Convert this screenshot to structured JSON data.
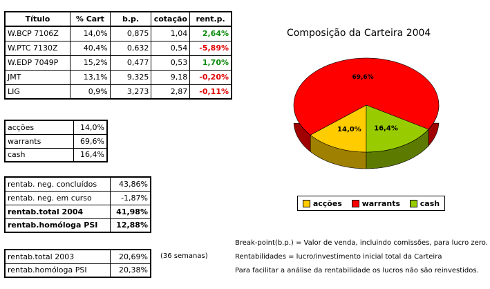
{
  "positions": {
    "headers": [
      "Título",
      "% Cart",
      "b.p.",
      "cotação",
      "rent.p."
    ],
    "rows": [
      {
        "titulo": "W.BCP 7106Z",
        "cart": "14,0%",
        "bp": "0,875",
        "cotacao": "1,04",
        "rent": "2,64%",
        "sign": "pos"
      },
      {
        "titulo": "W.PTC 7130Z",
        "cart": "40,4%",
        "bp": "0,632",
        "cotacao": "0,54",
        "rent": "-5,89%",
        "sign": "neg"
      },
      {
        "titulo": "W.EDP 7049P",
        "cart": "15,2%",
        "bp": "0,477",
        "cotacao": "0,53",
        "rent": "1,70%",
        "sign": "pos"
      },
      {
        "titulo": "JMT",
        "cart": "13,1%",
        "bp": "9,325",
        "cotacao": "9,18",
        "rent": "-0,20%",
        "sign": "neg"
      },
      {
        "titulo": "LIG",
        "cart": "0,9%",
        "bp": "3,273",
        "cotacao": "2,87",
        "rent": "-0,11%",
        "sign": "neg"
      }
    ]
  },
  "allocation": [
    {
      "label": "acções",
      "value": "14,0%"
    },
    {
      "label": "warrants",
      "value": "69,6%"
    },
    {
      "label": "cash",
      "value": "16,4%"
    }
  ],
  "returns": [
    {
      "label": "rentab. neg. concluídos",
      "value": "43,86%",
      "bold": false
    },
    {
      "label": "rentab. neg. em curso",
      "value": "-1,87%",
      "bold": false
    },
    {
      "label": "rentab.total 2004",
      "value": "41,98%",
      "bold": true
    },
    {
      "label": "rentab.homóloga PSI",
      "value": "12,88%",
      "bold": true
    }
  ],
  "history": [
    {
      "label": "rentab.total 2003",
      "value": "20,69%"
    },
    {
      "label": "rentab.homóloga PSI",
      "value": "20,38%"
    }
  ],
  "weeks_note": "(36 semanas)",
  "notes": [
    "Break-point(b.p.) = Valor de venda, incluindo comissões, para lucro zero.",
    "Rentabilidades = lucro/investimento inicial total da Carteira",
    "Para facilitar a análise da rentabilidade os lucros não são reinvestidos."
  ],
  "chart_data": {
    "type": "pie",
    "title": "Composição da Carteira 2004",
    "slices": [
      {
        "name": "acções",
        "value": 14.0,
        "label": "14,0%",
        "color": "#ffcc00",
        "side": "#a08000"
      },
      {
        "name": "warrants",
        "value": 69.6,
        "label": "69,6%",
        "color": "#ff0000",
        "side": "#a00000"
      },
      {
        "name": "cash",
        "value": 16.4,
        "label": "16,4%",
        "color": "#99cc00",
        "side": "#5c7a00"
      }
    ],
    "legend_position": "bottom",
    "style": "3d"
  }
}
